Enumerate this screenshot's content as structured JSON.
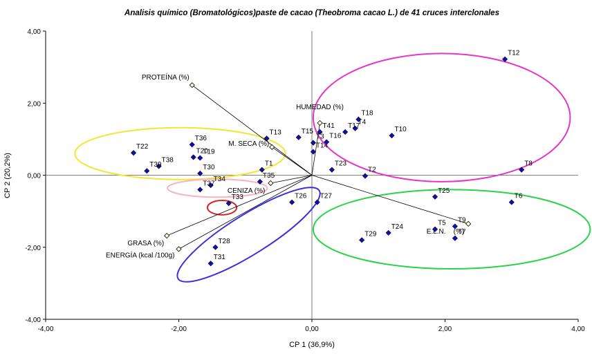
{
  "chart_data": {
    "type": "scatter",
    "title": "Analisis químico (Bromatológicos)paste de cacao (Theobroma cacao L.) de 41 cruces interclonales",
    "xlabel": "CP 1 (36,9%)",
    "ylabel": "CP 2 (20,2%)",
    "xlim": [
      -4,
      4
    ],
    "ylim": [
      -4,
      4
    ],
    "xticks": [
      "-4,00",
      "-2,00",
      "0,00",
      "2,00",
      "4,00"
    ],
    "yticks": [
      "-4,00",
      "-2,00",
      "0,00",
      "2,00",
      "4,00"
    ],
    "grid": false,
    "reference_lines": {
      "x": 0,
      "y": 0
    },
    "points": [
      {
        "label": "T1",
        "x": -0.75,
        "y": 0.15
      },
      {
        "label": "T2",
        "x": 0.8,
        "y": -0.02
      },
      {
        "label": "T3",
        "x": 0.02,
        "y": 0.9
      },
      {
        "label": "T4",
        "x": 0.65,
        "y": 1.3
      },
      {
        "label": "T5",
        "x": 1.85,
        "y": -1.5
      },
      {
        "label": "T6",
        "x": 3.0,
        "y": -0.75
      },
      {
        "label": "T7",
        "x": 2.15,
        "y": -1.75
      },
      {
        "label": "T8",
        "x": 3.15,
        "y": 0.15
      },
      {
        "label": "T9",
        "x": 2.15,
        "y": -1.42
      },
      {
        "label": "T10",
        "x": 1.2,
        "y": 1.1
      },
      {
        "label": "T12",
        "x": 2.9,
        "y": 3.22
      },
      {
        "label": "T13",
        "x": -0.68,
        "y": 1.02
      },
      {
        "label": "T14",
        "x": 0.02,
        "y": 0.65
      },
      {
        "label": "T15",
        "x": -0.2,
        "y": 1.05
      },
      {
        "label": "T16",
        "x": 0.22,
        "y": 0.92
      },
      {
        "label": "T17",
        "x": 0.5,
        "y": 1.2
      },
      {
        "label": "T18",
        "x": 0.7,
        "y": 1.55
      },
      {
        "label": "T19",
        "x": -1.68,
        "y": 0.48
      },
      {
        "label": "T20",
        "x": -1.78,
        "y": 0.5
      },
      {
        "label": "T22",
        "x": -2.68,
        "y": 0.62
      },
      {
        "label": "T23",
        "x": 0.3,
        "y": 0.15
      },
      {
        "label": "T24",
        "x": 1.15,
        "y": -1.6
      },
      {
        "label": "T25",
        "x": 1.85,
        "y": -0.6
      },
      {
        "label": "T26",
        "x": -0.3,
        "y": -0.75
      },
      {
        "label": "T27",
        "x": 0.08,
        "y": -0.75
      },
      {
        "label": "T28",
        "x": -1.45,
        "y": -2.0
      },
      {
        "label": "T29",
        "x": 0.75,
        "y": -1.8
      },
      {
        "label": "T30",
        "x": -1.68,
        "y": 0.05
      },
      {
        "label": "T31",
        "x": -1.52,
        "y": -2.45
      },
      {
        "label": "T33",
        "x": -1.25,
        "y": -0.78
      },
      {
        "label": "T34",
        "x": -1.52,
        "y": -0.28
      },
      {
        "label": "T35",
        "x": -0.78,
        "y": -0.18
      },
      {
        "label": "T36",
        "x": -1.8,
        "y": 0.85
      },
      {
        "label": "T37",
        "x": -1.68,
        "y": -0.4
      },
      {
        "label": "T38",
        "x": -2.3,
        "y": 0.25
      },
      {
        "label": "T39",
        "x": -2.48,
        "y": 0.12
      },
      {
        "label": "T41",
        "x": 0.12,
        "y": 1.2
      }
    ],
    "loadings": [
      {
        "label": "PROTEÍNA (%)",
        "x": -1.8,
        "y": 2.5
      },
      {
        "label": "HUMEDAD (%)",
        "x": 0.12,
        "y": 1.45
      },
      {
        "label": "M. SECA (%)",
        "x": -0.6,
        "y": 0.78
      },
      {
        "label": "CENIZA (%)",
        "x": -0.62,
        "y": -0.22
      },
      {
        "label": "GRASA (%)",
        "x": -2.18,
        "y": -1.68
      },
      {
        "label": "ENERGÍA (kcal /100g)",
        "x": -2.0,
        "y": -2.05
      },
      {
        "label": "E.L.N.    (%)",
        "x": 2.35,
        "y": -1.35
      }
    ],
    "group_ellipses": [
      {
        "color": "#e535c8",
        "cx": 1.95,
        "cy": 1.6,
        "rx": 1.93,
        "ry": 1.78
      },
      {
        "color": "#f4e533",
        "cx": -1.98,
        "cy": 0.6,
        "rx": 1.58,
        "ry": 0.72
      },
      {
        "color": "#f8b2c0",
        "cx": -1.42,
        "cy": -0.36,
        "rx": 0.75,
        "ry": 0.25
      },
      {
        "color": "#e02020",
        "cx": -1.35,
        "cy": -0.9,
        "rx": 0.22,
        "ry": 0.2
      },
      {
        "color": "#3a2fe0",
        "cx": -0.95,
        "cy": -1.65,
        "rx": 1.25,
        "ry": 0.55,
        "rotate": -32
      },
      {
        "color": "#2ad24a",
        "cx": 2.1,
        "cy": -1.5,
        "rx": 2.08,
        "ry": 1.1
      }
    ]
  },
  "colors": {
    "point": "#0f0fb0",
    "loading_marker": "#ffffe0",
    "axes": "#000000"
  }
}
